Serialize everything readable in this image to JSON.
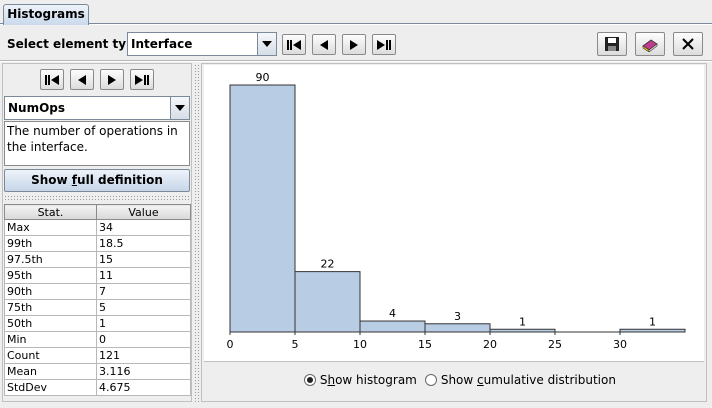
{
  "tab": {
    "label": "Histograms"
  },
  "toolbar": {
    "select_label": "Select element type",
    "element_type": "Interface"
  },
  "metric": {
    "selected": "NumOps",
    "description": "The number of operations in the interface.",
    "show_def_pre": "Show ",
    "show_def_u": "f",
    "show_def_post": "ull definition"
  },
  "stats": {
    "headers": [
      "Stat.",
      "Value"
    ],
    "rows": [
      [
        "Max",
        "34"
      ],
      [
        "99th",
        "18.5"
      ],
      [
        "97.5th",
        "15"
      ],
      [
        "95th",
        "11"
      ],
      [
        "90th",
        "7"
      ],
      [
        "75th",
        "5"
      ],
      [
        "50th",
        "1"
      ],
      [
        "Min",
        "0"
      ],
      [
        "Count",
        "121"
      ],
      [
        "Mean",
        "3.116"
      ],
      [
        "StdDev",
        "4.675"
      ]
    ]
  },
  "options": {
    "histogram": {
      "pre": "S",
      "u": "h",
      "post": "ow histogram",
      "selected": true
    },
    "cumulative": {
      "pre": "Show ",
      "u": "c",
      "post": "umulative distribution",
      "selected": false
    }
  },
  "colors": {
    "bar_fill": "#b8cce4",
    "bar_stroke": "#333333",
    "tab_accent": "#c9d9ec"
  },
  "chart_data": {
    "type": "bar",
    "bins": [
      {
        "from": 0,
        "to": 5,
        "count": 90
      },
      {
        "from": 5,
        "to": 10,
        "count": 22
      },
      {
        "from": 10,
        "to": 15,
        "count": 4
      },
      {
        "from": 15,
        "to": 20,
        "count": 3
      },
      {
        "from": 20,
        "to": 25,
        "count": 1
      },
      {
        "from": 25,
        "to": 30,
        "count": 0
      },
      {
        "from": 30,
        "to": 35,
        "count": 1
      }
    ],
    "x_ticks": [
      0,
      5,
      10,
      15,
      20,
      25,
      30
    ],
    "xlim": [
      0,
      35
    ],
    "ylim": [
      0,
      90
    ],
    "title": "",
    "xlabel": "",
    "ylabel": "",
    "grid": false
  }
}
